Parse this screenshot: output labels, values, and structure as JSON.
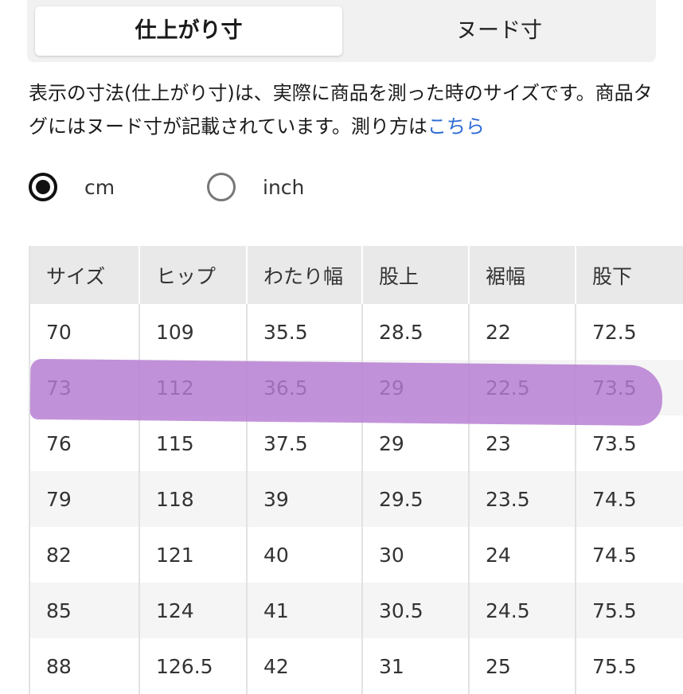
{
  "tabs": {
    "finished": "仕上がり寸",
    "nude": "ヌード寸"
  },
  "description": {
    "text": "表示の寸法(仕上がり寸)は、実際に商品を測った時のサイズです。商品タグにはヌード寸が記載されています。測り方は",
    "link": "こちら"
  },
  "units": {
    "cm": "cm",
    "inch": "inch",
    "selected": "cm"
  },
  "table": {
    "headers": [
      "サイズ",
      "ヒップ",
      "わたり幅",
      "股上",
      "裾幅",
      "股下"
    ],
    "rows": [
      [
        "70",
        "109",
        "35.5",
        "28.5",
        "22",
        "72.5"
      ],
      [
        "73",
        "112",
        "36.5",
        "29",
        "22.5",
        "73.5"
      ],
      [
        "76",
        "115",
        "37.5",
        "29",
        "23",
        "73.5"
      ],
      [
        "79",
        "118",
        "39",
        "29.5",
        "23.5",
        "74.5"
      ],
      [
        "82",
        "121",
        "40",
        "30",
        "24",
        "74.5"
      ],
      [
        "85",
        "124",
        "41",
        "30.5",
        "24.5",
        "75.5"
      ],
      [
        "88",
        "126.5",
        "42",
        "31",
        "25",
        "75.5"
      ]
    ],
    "highlighted_row": 1
  },
  "colors": {
    "highlight": "#b57bd2",
    "link": "#2d6bd4"
  }
}
